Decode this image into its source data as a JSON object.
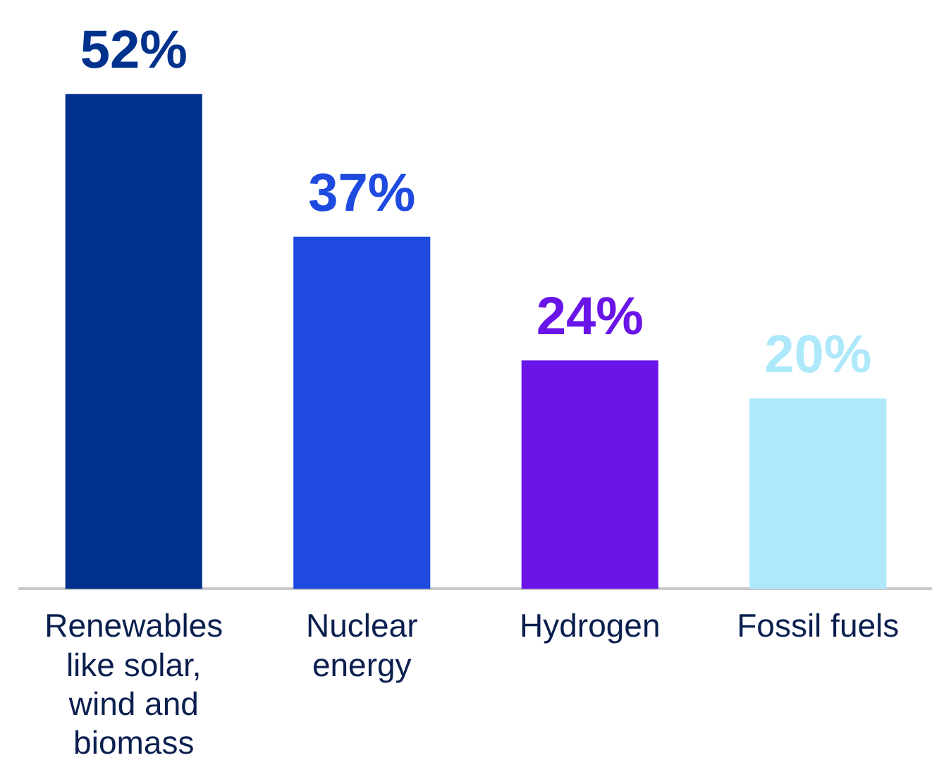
{
  "chart_data": {
    "type": "bar",
    "categories": [
      "Renewables like solar, wind and biomass",
      "Nuclear energy",
      "Hydrogen",
      "Fossil fuels"
    ],
    "values": [
      52,
      37,
      24,
      20
    ],
    "colors": [
      "#00318c",
      "#1f4ae0",
      "#6a14e8",
      "#aee8fb"
    ],
    "value_labels": [
      "52%",
      "37%",
      "24%",
      "20%"
    ],
    "grid": false,
    "legend": false
  }
}
